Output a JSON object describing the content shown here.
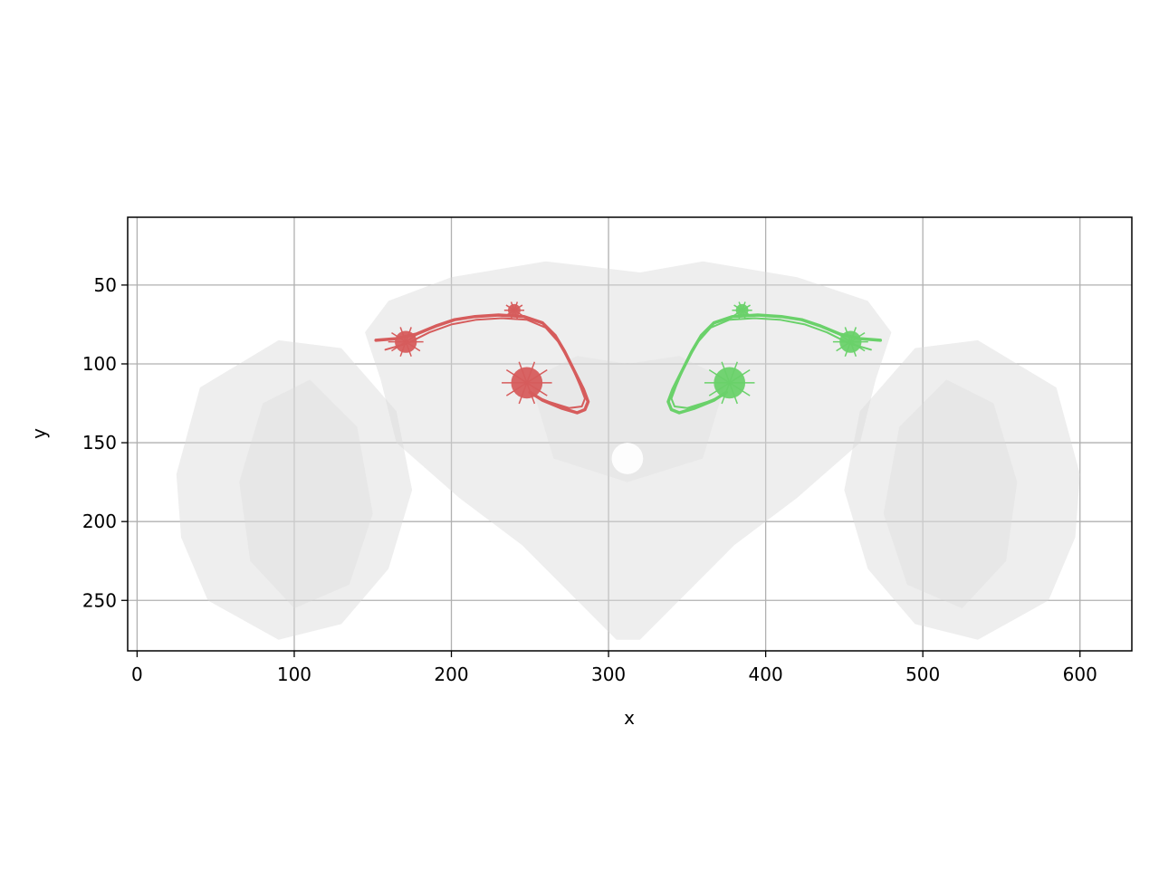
{
  "chart_data": {
    "type": "scatter",
    "title": "",
    "xlabel": "x",
    "ylabel": "y",
    "xlim": [
      -6,
      633
    ],
    "ylim": [
      282,
      7
    ],
    "y_inverted": true,
    "grid": true,
    "xticks": [
      0,
      100,
      200,
      300,
      400,
      500,
      600
    ],
    "yticks": [
      50,
      100,
      150,
      200,
      250
    ],
    "background_mesh": {
      "description_color": "#c8c8c8",
      "opacity": 0.3
    },
    "series": [
      {
        "color": "#d65c5c",
        "tract": [
          [
            152,
            85
          ],
          [
            165,
            84
          ],
          [
            178,
            81
          ],
          [
            190,
            76
          ],
          [
            202,
            72
          ],
          [
            215,
            70
          ],
          [
            230,
            69
          ],
          [
            246,
            70
          ],
          [
            258,
            74
          ],
          [
            266,
            82
          ],
          [
            272,
            92
          ],
          [
            278,
            104
          ],
          [
            284,
            116
          ],
          [
            287,
            124
          ],
          [
            285,
            129
          ],
          [
            280,
            131
          ],
          [
            270,
            128
          ],
          [
            258,
            123
          ],
          [
            250,
            118
          ]
        ],
        "tract2": [
          [
            158,
            91
          ],
          [
            172,
            87
          ],
          [
            186,
            80
          ],
          [
            200,
            75
          ],
          [
            216,
            72
          ],
          [
            232,
            71
          ],
          [
            248,
            72
          ],
          [
            260,
            77
          ],
          [
            268,
            86
          ],
          [
            276,
            100
          ],
          [
            282,
            114
          ],
          [
            285,
            122
          ],
          [
            283,
            127
          ],
          [
            275,
            128
          ],
          [
            262,
            124
          ],
          [
            252,
            120
          ]
        ],
        "clusters": [
          {
            "x": 171,
            "y": 86,
            "r": 7
          },
          {
            "x": 240,
            "y": 66,
            "r": 4
          },
          {
            "x": 248,
            "y": 112,
            "r": 10
          }
        ]
      },
      {
        "color": "#6ad16a",
        "tract": [
          [
            473,
            85
          ],
          [
            460,
            84
          ],
          [
            447,
            81
          ],
          [
            435,
            76
          ],
          [
            423,
            72
          ],
          [
            410,
            70
          ],
          [
            395,
            69
          ],
          [
            379,
            70
          ],
          [
            367,
            74
          ],
          [
            359,
            82
          ],
          [
            353,
            92
          ],
          [
            347,
            104
          ],
          [
            341,
            116
          ],
          [
            338,
            124
          ],
          [
            340,
            129
          ],
          [
            345,
            131
          ],
          [
            355,
            128
          ],
          [
            367,
            123
          ],
          [
            375,
            118
          ]
        ],
        "tract2": [
          [
            467,
            91
          ],
          [
            453,
            87
          ],
          [
            439,
            80
          ],
          [
            425,
            75
          ],
          [
            409,
            72
          ],
          [
            393,
            71
          ],
          [
            377,
            72
          ],
          [
            365,
            77
          ],
          [
            357,
            86
          ],
          [
            349,
            100
          ],
          [
            343,
            114
          ],
          [
            340,
            122
          ],
          [
            342,
            127
          ],
          [
            350,
            128
          ],
          [
            363,
            124
          ],
          [
            373,
            120
          ]
        ],
        "clusters": [
          {
            "x": 454,
            "y": 86,
            "r": 7
          },
          {
            "x": 385,
            "y": 66,
            "r": 4
          },
          {
            "x": 377,
            "y": 112,
            "r": 10
          }
        ]
      }
    ]
  }
}
